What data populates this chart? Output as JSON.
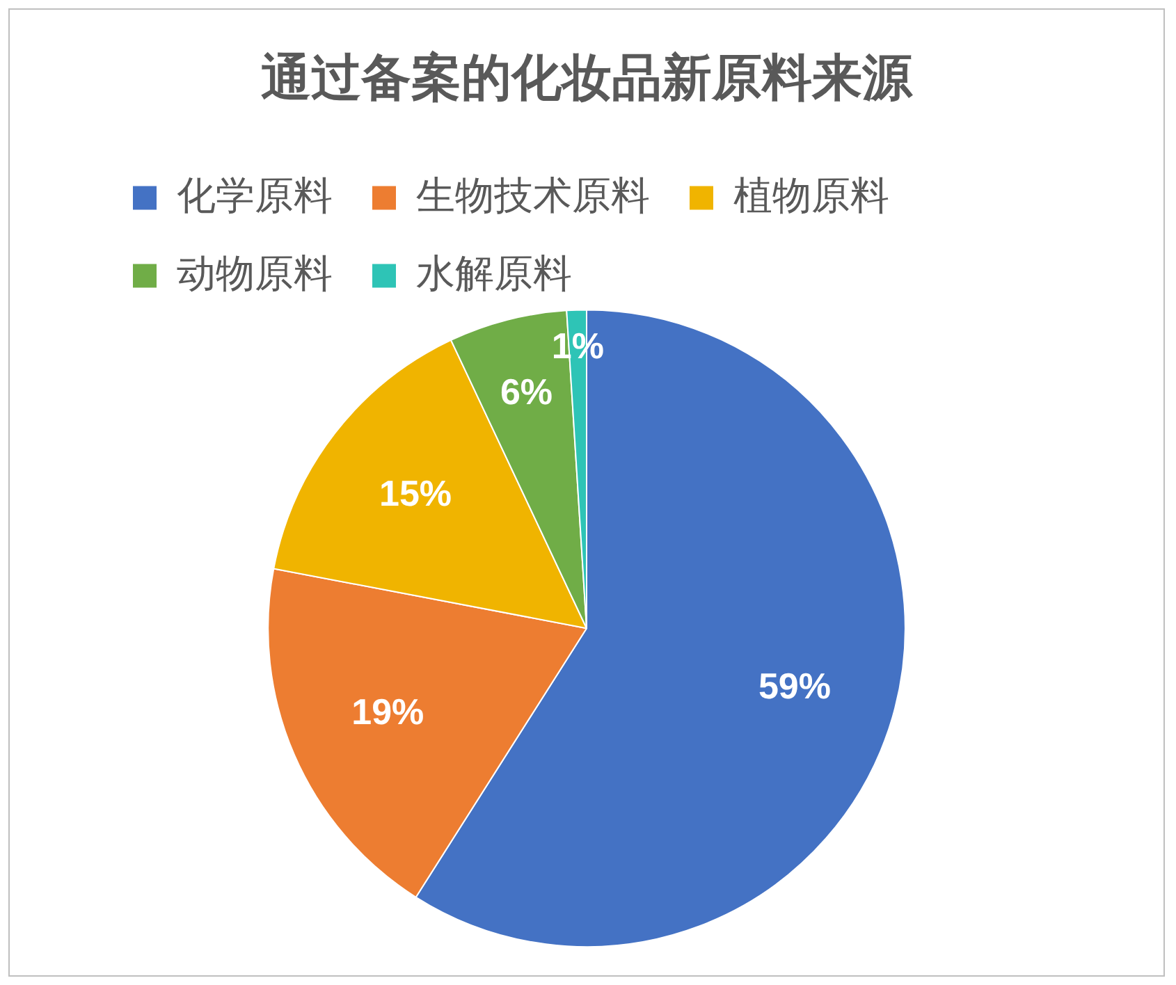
{
  "chart_data": {
    "type": "pie",
    "title": "通过备案的化妆品新原料来源",
    "categories": [
      "化学原料",
      "生物技术原料",
      "植物原料",
      "动物原料",
      "水解原料"
    ],
    "values": [
      59,
      19,
      15,
      6,
      1
    ],
    "colors": [
      "#4472c4",
      "#ed7d31",
      "#f0b400",
      "#70ad47",
      "#2ec4b6"
    ],
    "value_labels": [
      "59%",
      "19%",
      "15%",
      "6%",
      "1%"
    ],
    "legend": "top"
  }
}
